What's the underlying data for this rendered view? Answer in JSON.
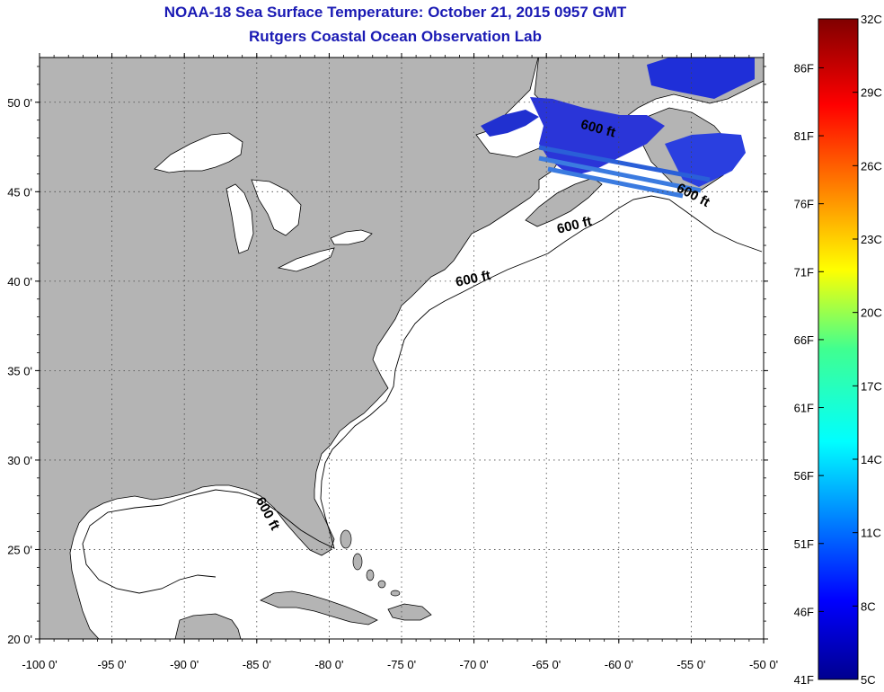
{
  "title": "NOAA-18 Sea Surface Temperature:  October 21, 2015 0957 GMT",
  "subtitle": "Rutgers Coastal Ocean Observation Lab",
  "colors": {
    "land": "#b4b4b4",
    "ocean": "#ffffff",
    "title": "#1a1ab4",
    "sst_cold": "#1f2fd8",
    "sst_stripe": "#3b7be0"
  },
  "map": {
    "lon_range": [
      -100,
      -50
    ],
    "lat_range": [
      20,
      52.5
    ],
    "lon_ticks": [
      {
        "value": -100,
        "label": "-100 0'"
      },
      {
        "value": -95,
        "label": "-95 0'"
      },
      {
        "value": -90,
        "label": "-90 0'"
      },
      {
        "value": -85,
        "label": "-85 0'"
      },
      {
        "value": -80,
        "label": "-80 0'"
      },
      {
        "value": -75,
        "label": "-75 0'"
      },
      {
        "value": -70,
        "label": "-70 0'"
      },
      {
        "value": -65,
        "label": "-65 0'"
      },
      {
        "value": -60,
        "label": "-60 0'"
      },
      {
        "value": -55,
        "label": "-55 0'"
      },
      {
        "value": -50,
        "label": "-50 0'"
      }
    ],
    "lat_ticks": [
      {
        "value": 20,
        "label": "20 0'"
      },
      {
        "value": 25,
        "label": "25 0'"
      },
      {
        "value": 30,
        "label": "30 0'"
      },
      {
        "value": 35,
        "label": "35 0'"
      },
      {
        "value": 40,
        "label": "40 0'"
      },
      {
        "value": 45,
        "label": "45 0'"
      },
      {
        "value": 50,
        "label": "50 0'"
      }
    ],
    "grid": true,
    "contour_labels": [
      {
        "text": "600 ft",
        "lon": -70,
        "lat": 39.9,
        "rotate": -12
      },
      {
        "text": "600 ft",
        "lon": -63,
        "lat": 42.9,
        "rotate": -14
      },
      {
        "text": "600 ft",
        "lon": -55,
        "lat": 44.6,
        "rotate": 28
      },
      {
        "text": "600 ft",
        "lon": -61.5,
        "lat": 48.3,
        "rotate": 15
      },
      {
        "text": "600 ft",
        "lon": -84.5,
        "lat": 26.9,
        "rotate": 62
      }
    ]
  },
  "colorbar": {
    "celsius_ticks": [
      {
        "value": 5,
        "label": "5C"
      },
      {
        "value": 8,
        "label": "8C"
      },
      {
        "value": 11,
        "label": "11C"
      },
      {
        "value": 14,
        "label": "14C"
      },
      {
        "value": 17,
        "label": "17C"
      },
      {
        "value": 20,
        "label": "20C"
      },
      {
        "value": 23,
        "label": "23C"
      },
      {
        "value": 26,
        "label": "26C"
      },
      {
        "value": 29,
        "label": "29C"
      },
      {
        "value": 32,
        "label": "32C"
      }
    ],
    "fahrenheit_ticks": [
      {
        "value": 41,
        "label": "41F"
      },
      {
        "value": 46,
        "label": "46F"
      },
      {
        "value": 51,
        "label": "51F"
      },
      {
        "value": 56,
        "label": "56F"
      },
      {
        "value": 61,
        "label": "61F"
      },
      {
        "value": 66,
        "label": "66F"
      },
      {
        "value": 71,
        "label": "71F"
      },
      {
        "value": 76,
        "label": "76F"
      },
      {
        "value": 81,
        "label": "81F"
      },
      {
        "value": 86,
        "label": "86F"
      }
    ],
    "range_c": [
      5,
      32
    ]
  }
}
